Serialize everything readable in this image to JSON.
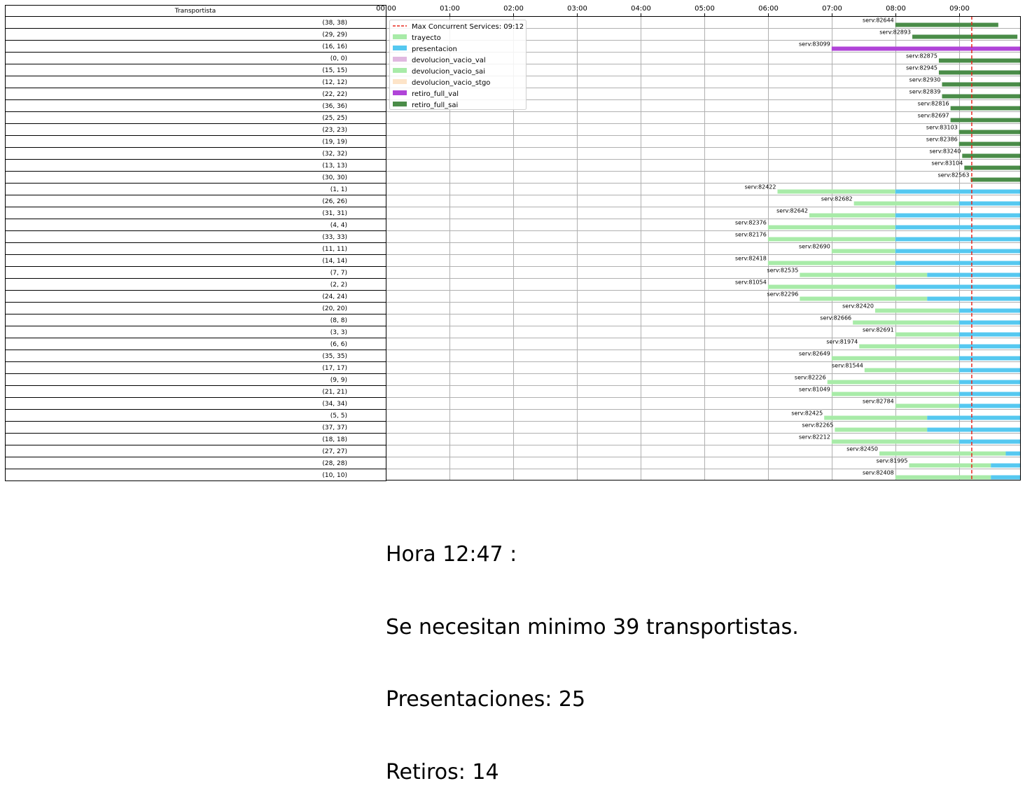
{
  "chart_data": {
    "type": "gantt",
    "table_header": "Transportista",
    "x_ticks": [
      "00:00",
      "01:00",
      "02:00",
      "03:00",
      "04:00",
      "05:00",
      "06:00",
      "07:00",
      "08:00",
      "09:00"
    ],
    "xlim_hours": [
      0,
      9.97
    ],
    "grid": true,
    "max_concurrent": {
      "label": "Max Concurrent Services: 09:12",
      "time": "09:12",
      "color": "#e8281e"
    },
    "legend_position": "top-left",
    "legend": [
      {
        "key": "max",
        "label": "Max Concurrent Services: 09:12"
      },
      {
        "key": "trayecto",
        "label": "trayecto"
      },
      {
        "key": "presentacion",
        "label": "presentacion"
      },
      {
        "key": "devolucion_vacio_val",
        "label": "devolucion_vacio_val"
      },
      {
        "key": "devolucion_vacio_sai",
        "label": "devolucion_vacio_sai"
      },
      {
        "key": "devolucion_vacio_stgo",
        "label": "devolucion_vacio_stgo"
      },
      {
        "key": "retiro_full_val",
        "label": "retiro_full_val"
      },
      {
        "key": "retiro_full_sai",
        "label": "retiro_full_sai"
      }
    ],
    "colors": {
      "trayecto": "#a8eba8",
      "presentacion": "#55c8f0",
      "devolucion_vacio_val": "#e0b8e0",
      "devolucion_vacio_sai": "#a8eba8",
      "devolucion_vacio_stgo": "#fde4c8",
      "retiro_full_val": "#b044d8",
      "retiro_full_sai": "#4a8c48"
    },
    "rows": [
      {
        "label": "(38, 38)",
        "service": "serv:82644",
        "segments": [
          {
            "type": "retiro_full_sai",
            "start": "08:00",
            "end": "09:37"
          }
        ]
      },
      {
        "label": "(29, 29)",
        "service": "serv:82893",
        "segments": [
          {
            "type": "retiro_full_sai",
            "start": "08:16",
            "end": "09:55"
          }
        ]
      },
      {
        "label": "(16, 16)",
        "service": "serv:83099",
        "segments": [
          {
            "type": "retiro_full_val",
            "start": "07:00",
            "end": "09:58"
          }
        ]
      },
      {
        "label": "(0, 0)",
        "service": "serv:82875",
        "segments": [
          {
            "type": "retiro_full_sai",
            "start": "08:41",
            "end": "09:58"
          }
        ]
      },
      {
        "label": "(15, 15)",
        "service": "serv:82945",
        "segments": [
          {
            "type": "retiro_full_sai",
            "start": "08:41",
            "end": "09:58"
          }
        ]
      },
      {
        "label": "(12, 12)",
        "service": "serv:82930",
        "segments": [
          {
            "type": "retiro_full_sai",
            "start": "08:44",
            "end": "09:58"
          }
        ]
      },
      {
        "label": "(22, 22)",
        "service": "serv:82839",
        "segments": [
          {
            "type": "retiro_full_sai",
            "start": "08:44",
            "end": "09:58"
          }
        ]
      },
      {
        "label": "(36, 36)",
        "service": "serv:82816",
        "segments": [
          {
            "type": "retiro_full_sai",
            "start": "08:52",
            "end": "09:58"
          }
        ]
      },
      {
        "label": "(25, 25)",
        "service": "serv:82697",
        "segments": [
          {
            "type": "retiro_full_sai",
            "start": "08:52",
            "end": "09:58"
          }
        ]
      },
      {
        "label": "(23, 23)",
        "service": "serv:83103",
        "segments": [
          {
            "type": "retiro_full_sai",
            "start": "09:00",
            "end": "09:58"
          }
        ]
      },
      {
        "label": "(19, 19)",
        "service": "serv:82386",
        "segments": [
          {
            "type": "retiro_full_sai",
            "start": "09:00",
            "end": "09:58"
          }
        ]
      },
      {
        "label": "(32, 32)",
        "service": "serv:83240",
        "segments": [
          {
            "type": "retiro_full_sai",
            "start": "09:03",
            "end": "09:58"
          }
        ]
      },
      {
        "label": "(13, 13)",
        "service": "serv:83104",
        "segments": [
          {
            "type": "retiro_full_sai",
            "start": "09:05",
            "end": "09:58"
          }
        ]
      },
      {
        "label": "(30, 30)",
        "service": "serv:82563",
        "segments": [
          {
            "type": "retiro_full_sai",
            "start": "09:11",
            "end": "09:58"
          }
        ]
      },
      {
        "label": "(1, 1)",
        "service": "serv:82422",
        "segments": [
          {
            "type": "trayecto",
            "start": "06:09",
            "end": "08:00"
          },
          {
            "type": "presentacion",
            "start": "08:00",
            "end": "09:58"
          }
        ]
      },
      {
        "label": "(26, 26)",
        "service": "serv:82682",
        "segments": [
          {
            "type": "trayecto",
            "start": "07:21",
            "end": "09:00"
          },
          {
            "type": "presentacion",
            "start": "09:00",
            "end": "09:58"
          }
        ]
      },
      {
        "label": "(31, 31)",
        "service": "serv:82642",
        "segments": [
          {
            "type": "trayecto",
            "start": "06:39",
            "end": "08:00"
          },
          {
            "type": "presentacion",
            "start": "08:00",
            "end": "09:58"
          }
        ]
      },
      {
        "label": "(4, 4)",
        "service": "serv:82376",
        "segments": [
          {
            "type": "trayecto",
            "start": "06:00",
            "end": "08:00"
          },
          {
            "type": "presentacion",
            "start": "08:00",
            "end": "09:58"
          }
        ]
      },
      {
        "label": "(33, 33)",
        "service": "serv:82176",
        "segments": [
          {
            "type": "trayecto",
            "start": "06:00",
            "end": "08:00"
          },
          {
            "type": "presentacion",
            "start": "08:00",
            "end": "09:58"
          }
        ]
      },
      {
        "label": "(11, 11)",
        "service": "serv:82690",
        "segments": [
          {
            "type": "trayecto",
            "start": "07:00",
            "end": "08:00"
          },
          {
            "type": "presentacion",
            "start": "08:00",
            "end": "09:58"
          }
        ]
      },
      {
        "label": "(14, 14)",
        "service": "serv:82418",
        "segments": [
          {
            "type": "trayecto",
            "start": "06:00",
            "end": "08:00"
          },
          {
            "type": "presentacion",
            "start": "08:00",
            "end": "09:58"
          }
        ]
      },
      {
        "label": "(7, 7)",
        "service": "serv:82535",
        "segments": [
          {
            "type": "trayecto",
            "start": "06:30",
            "end": "08:30"
          },
          {
            "type": "presentacion",
            "start": "08:30",
            "end": "09:58"
          }
        ]
      },
      {
        "label": "(2, 2)",
        "service": "serv:81054",
        "segments": [
          {
            "type": "trayecto",
            "start": "06:00",
            "end": "08:00"
          },
          {
            "type": "presentacion",
            "start": "08:00",
            "end": "09:58"
          }
        ]
      },
      {
        "label": "(24, 24)",
        "service": "serv:82296",
        "segments": [
          {
            "type": "trayecto",
            "start": "06:30",
            "end": "08:30"
          },
          {
            "type": "presentacion",
            "start": "08:30",
            "end": "09:58"
          }
        ]
      },
      {
        "label": "(20, 20)",
        "service": "serv:82420",
        "segments": [
          {
            "type": "trayecto",
            "start": "07:41",
            "end": "09:00"
          },
          {
            "type": "presentacion",
            "start": "09:00",
            "end": "09:58"
          }
        ]
      },
      {
        "label": "(8, 8)",
        "service": "serv:82666",
        "segments": [
          {
            "type": "trayecto",
            "start": "07:20",
            "end": "09:00"
          },
          {
            "type": "presentacion",
            "start": "09:00",
            "end": "09:58"
          }
        ]
      },
      {
        "label": "(3, 3)",
        "service": "serv:82691",
        "segments": [
          {
            "type": "trayecto",
            "start": "08:00",
            "end": "09:00"
          },
          {
            "type": "presentacion",
            "start": "09:00",
            "end": "09:58"
          }
        ]
      },
      {
        "label": "(6, 6)",
        "service": "serv:81974",
        "segments": [
          {
            "type": "trayecto",
            "start": "07:26",
            "end": "09:00"
          },
          {
            "type": "presentacion",
            "start": "09:00",
            "end": "09:58"
          }
        ]
      },
      {
        "label": "(35, 35)",
        "service": "serv:82649",
        "segments": [
          {
            "type": "trayecto",
            "start": "07:00",
            "end": "09:00"
          },
          {
            "type": "presentacion",
            "start": "09:00",
            "end": "09:58"
          }
        ]
      },
      {
        "label": "(17, 17)",
        "service": "serv:81544",
        "segments": [
          {
            "type": "trayecto",
            "start": "07:31",
            "end": "09:00"
          },
          {
            "type": "presentacion",
            "start": "09:00",
            "end": "09:58"
          }
        ]
      },
      {
        "label": "(9, 9)",
        "service": "serv:82226",
        "segments": [
          {
            "type": "trayecto",
            "start": "06:56",
            "end": "09:00"
          },
          {
            "type": "presentacion",
            "start": "09:00",
            "end": "09:58"
          }
        ]
      },
      {
        "label": "(21, 21)",
        "service": "serv:81049",
        "segments": [
          {
            "type": "trayecto",
            "start": "07:00",
            "end": "09:00"
          },
          {
            "type": "presentacion",
            "start": "09:00",
            "end": "09:58"
          }
        ]
      },
      {
        "label": "(34, 34)",
        "service": "serv:82784",
        "segments": [
          {
            "type": "trayecto",
            "start": "08:00",
            "end": "09:00"
          },
          {
            "type": "presentacion",
            "start": "09:00",
            "end": "09:58"
          }
        ]
      },
      {
        "label": "(5, 5)",
        "service": "serv:82425",
        "segments": [
          {
            "type": "trayecto",
            "start": "06:53",
            "end": "08:30"
          },
          {
            "type": "presentacion",
            "start": "08:30",
            "end": "09:58"
          }
        ]
      },
      {
        "label": "(37, 37)",
        "service": "serv:82265",
        "segments": [
          {
            "type": "trayecto",
            "start": "07:03",
            "end": "08:30"
          },
          {
            "type": "presentacion",
            "start": "08:30",
            "end": "09:58"
          }
        ]
      },
      {
        "label": "(18, 18)",
        "service": "serv:82212",
        "segments": [
          {
            "type": "trayecto",
            "start": "07:00",
            "end": "09:00"
          },
          {
            "type": "presentacion",
            "start": "09:00",
            "end": "09:58"
          }
        ]
      },
      {
        "label": "(27, 27)",
        "service": "serv:82450",
        "segments": [
          {
            "type": "trayecto",
            "start": "07:45",
            "end": "09:44"
          },
          {
            "type": "presentacion",
            "start": "09:44",
            "end": "09:58"
          }
        ]
      },
      {
        "label": "(28, 28)",
        "service": "serv:81995",
        "segments": [
          {
            "type": "trayecto",
            "start": "08:13",
            "end": "09:30"
          },
          {
            "type": "presentacion",
            "start": "09:30",
            "end": "09:58"
          }
        ]
      },
      {
        "label": "(10, 10)",
        "service": "serv:82408",
        "segments": [
          {
            "type": "trayecto",
            "start": "08:00",
            "end": "09:30"
          },
          {
            "type": "presentacion",
            "start": "09:30",
            "end": "09:58"
          }
        ]
      }
    ]
  },
  "summary": {
    "line1": "Hora 12:47 :",
    "line2": "Se necesitan minimo 39 transportistas.",
    "line3": "Presentaciones: 25",
    "line4": "Retiros: 14"
  }
}
